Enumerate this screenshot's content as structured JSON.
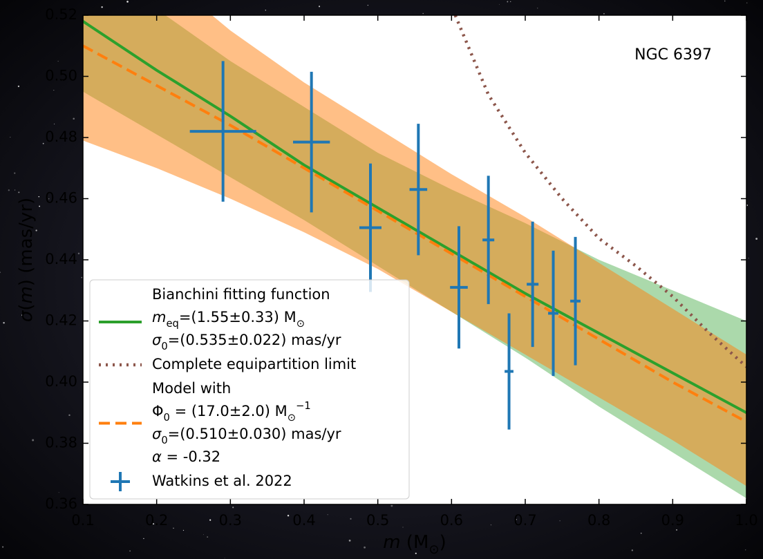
{
  "chart_data": {
    "type": "errorbar",
    "annotation": "NGC 6397",
    "xlabel": [
      {
        "text": "m",
        "style": "italic"
      },
      {
        "text": " (M"
      },
      {
        "text": "⊙",
        "style": "sub"
      },
      {
        "text": ")"
      }
    ],
    "ylabel": [
      {
        "text": "σ",
        "style": "italic"
      },
      {
        "text": "("
      },
      {
        "text": "m",
        "style": "italic"
      },
      {
        "text": ") (mas/yr)"
      }
    ],
    "xlim": [
      0.1,
      1.0
    ],
    "ylim": [
      0.36,
      0.52
    ],
    "xticks": [
      0.1,
      0.2,
      0.3,
      0.4,
      0.5,
      0.6,
      0.7,
      0.8,
      0.9,
      {
        "value": 1.0,
        "label": "1.0"
      }
    ],
    "yticks": [
      0.36,
      0.38,
      {
        "value": 0.4,
        "label": "0.40"
      },
      0.42,
      0.44,
      0.46,
      0.48,
      {
        "value": 0.5,
        "label": "0.50"
      },
      0.52
    ],
    "series": [
      {
        "name": [
          [
            {
              "text": "Bianchini fitting function"
            }
          ],
          [
            {
              "text": "m",
              "style": "italic"
            },
            {
              "text": "eq",
              "style": "sub"
            },
            {
              "text": "=(1.55±0.33) M"
            },
            {
              "text": "⊙",
              "style": "sub"
            }
          ],
          [
            {
              "text": "σ",
              "style": "italic"
            },
            {
              "text": "0",
              "style": "sub"
            },
            {
              "text": "=(0.535±0.022) mas/yr"
            }
          ]
        ],
        "type": "line",
        "style": "solid",
        "color": "#2ca02c",
        "x": [
          0.1,
          0.2,
          0.3,
          0.4,
          0.5,
          0.6,
          0.7,
          0.8,
          0.9,
          1.0
        ],
        "values": [
          0.518,
          0.502,
          0.487,
          0.471,
          0.457,
          0.443,
          0.429,
          0.416,
          0.403,
          0.39
        ],
        "upper": [
          0.545,
          0.522,
          0.505,
          0.49,
          0.475,
          0.463,
          0.452,
          0.44,
          0.43,
          0.42
        ],
        "lower": [
          0.495,
          0.481,
          0.467,
          0.453,
          0.438,
          0.423,
          0.408,
          0.392,
          0.377,
          0.362
        ]
      },
      {
        "name": [
          [
            {
              "text": "Complete equipartition limit"
            }
          ]
        ],
        "type": "line",
        "style": "dotted",
        "color": "#8c564b",
        "x": [
          0.605,
          0.65,
          0.7,
          0.75,
          0.8,
          0.85,
          0.9,
          0.95,
          1.0
        ],
        "values": [
          0.52,
          0.494,
          0.475,
          0.46,
          0.447,
          0.438,
          0.428,
          0.416,
          0.405
        ]
      },
      {
        "name": [
          [
            {
              "text": "Model with"
            }
          ],
          [
            {
              "text": "Φ"
            },
            {
              "text": "0",
              "style": "sub"
            },
            {
              "text": " = (17.0±2.0) M"
            },
            {
              "text": "⊙",
              "style": "sub"
            },
            {
              "text": "−1",
              "style": "super"
            }
          ],
          [
            {
              "text": "σ",
              "style": "italic"
            },
            {
              "text": "0",
              "style": "sub"
            },
            {
              "text": "=(0.510±0.030) mas/yr"
            }
          ],
          [
            {
              "text": "α",
              "style": "italic"
            },
            {
              "text": " = -0.32"
            }
          ]
        ],
        "type": "line",
        "style": "dashed",
        "color": "#ff7f0e",
        "x": [
          0.1,
          0.2,
          0.3,
          0.4,
          0.5,
          0.6,
          0.7,
          0.8,
          0.9,
          1.0
        ],
        "values": [
          0.51,
          0.497,
          0.484,
          0.47,
          0.456,
          0.442,
          0.428,
          0.414,
          0.4,
          0.387
        ],
        "upper": [
          0.55,
          0.535,
          0.515,
          0.498,
          0.483,
          0.468,
          0.454,
          0.439,
          0.424,
          0.409
        ],
        "lower": [
          0.479,
          0.47,
          0.46,
          0.449,
          0.437,
          0.423,
          0.409,
          0.395,
          0.381,
          0.366
        ]
      },
      {
        "name": [
          [
            {
              "text": "Watkins et al. 2022"
            }
          ]
        ],
        "type": "errorbar",
        "color": "#1f77b4",
        "x": [
          0.29,
          0.41,
          0.49,
          0.555,
          0.61,
          0.65,
          0.678,
          0.71,
          0.738,
          0.768
        ],
        "values": [
          0.482,
          0.4785,
          0.4505,
          0.463,
          0.431,
          0.4465,
          0.4035,
          0.432,
          0.4225,
          0.4265
        ],
        "xerr": [
          0.045,
          0.025,
          0.015,
          0.012,
          0.012,
          0.008,
          0.006,
          0.008,
          0.007,
          0.007
        ],
        "yerr": [
          0.023,
          0.023,
          0.021,
          0.0215,
          0.02,
          0.021,
          0.019,
          0.0205,
          0.0205,
          0.021
        ]
      }
    ]
  }
}
